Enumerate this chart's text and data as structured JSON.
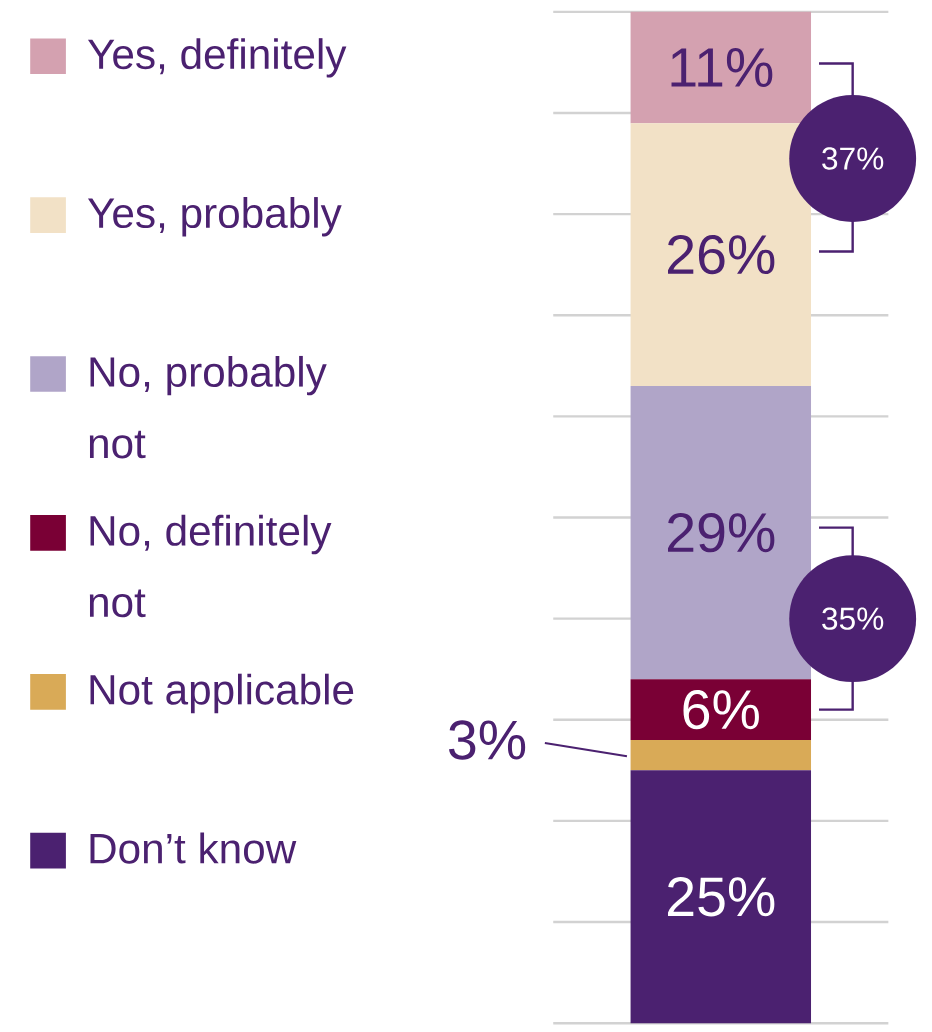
{
  "chart_data": {
    "type": "bar",
    "stacked": true,
    "categories": [
      null
    ],
    "ylim": [
      0,
      100
    ],
    "yticks": [
      0,
      10,
      20,
      30,
      40,
      50,
      60,
      70,
      80,
      90,
      100
    ],
    "tick_labels": false,
    "grid": "y",
    "legend": "left",
    "annotations": [
      "37%",
      "35%"
    ],
    "series": [
      {
        "name": "Don’t know",
        "color": "#4b2170",
        "values": [
          25
        ],
        "value_labels": [
          "25%"
        ]
      },
      {
        "name": "Not applicable",
        "color": "#d9aa57",
        "values": [
          3
        ],
        "value_labels": [
          "3%"
        ]
      },
      {
        "name": "No, definitely not",
        "color": "#7a0035",
        "values": [
          6
        ],
        "value_labels": [
          "6%"
        ]
      },
      {
        "name": "No, probably not",
        "color": "#b0a5c8",
        "values": [
          29
        ],
        "value_labels": [
          "29%"
        ]
      },
      {
        "name": "Yes, probably",
        "color": "#f2e1c6",
        "values": [
          26
        ],
        "value_labels": [
          "26%"
        ]
      },
      {
        "name": "Yes, definitely",
        "color": "#d4a1b0",
        "values": [
          11
        ],
        "value_labels": [
          "11%"
        ]
      }
    ]
  }
}
